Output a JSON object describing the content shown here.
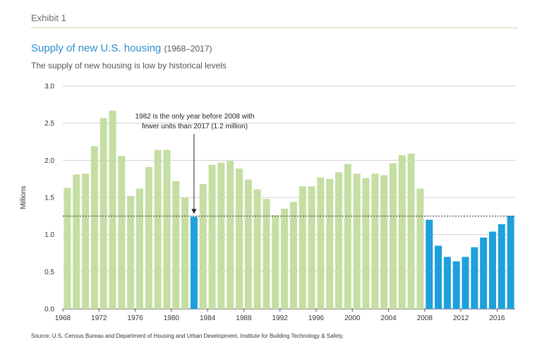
{
  "header": {
    "exhibit": "Exhibit 1",
    "title": "Supply of new U.S. housing",
    "title_years": "(1968–2017)",
    "subtitle": "The supply of new housing is low by historical levels"
  },
  "source": "Source: U.S. Census Bureau and Department of Housing and Urban Development, Institute for Building Technology & Safety.",
  "colors": {
    "accent": "#2a8fcf",
    "bar_default": "#c5dea3",
    "bar_highlight": "#1ea0dc"
  },
  "chart_data": {
    "type": "bar",
    "ylabel": "Millions",
    "ylim": [
      0,
      3.0
    ],
    "yticks": [
      0.0,
      0.5,
      1.0,
      1.5,
      2.0,
      2.5,
      3.0
    ],
    "ytick_labels": [
      "0.0",
      "0.5",
      "1.0",
      "1.5",
      "2.0",
      "2.5",
      "3.0"
    ],
    "xtick_labels": [
      "1968",
      "1972",
      "1976",
      "1980",
      "1984",
      "1988",
      "1992",
      "1996",
      "2000",
      "2004",
      "2008",
      "2012",
      "2016"
    ],
    "grid": true,
    "categories": [
      1968,
      1969,
      1970,
      1971,
      1972,
      1973,
      1974,
      1975,
      1976,
      1977,
      1978,
      1979,
      1980,
      1981,
      1982,
      1983,
      1984,
      1985,
      1986,
      1987,
      1988,
      1989,
      1990,
      1991,
      1992,
      1993,
      1994,
      1995,
      1996,
      1997,
      1998,
      1999,
      2000,
      2001,
      2002,
      2003,
      2004,
      2005,
      2006,
      2007,
      2008,
      2009,
      2010,
      2011,
      2012,
      2013,
      2014,
      2015,
      2016,
      2017
    ],
    "values": [
      1.63,
      1.81,
      1.82,
      2.19,
      2.57,
      2.67,
      2.06,
      1.52,
      1.62,
      1.91,
      2.14,
      2.14,
      1.72,
      1.5,
      1.24,
      1.68,
      1.94,
      1.97,
      1.99,
      1.89,
      1.74,
      1.61,
      1.48,
      1.26,
      1.35,
      1.44,
      1.65,
      1.65,
      1.77,
      1.75,
      1.84,
      1.95,
      1.82,
      1.76,
      1.82,
      1.8,
      1.96,
      2.07,
      2.09,
      1.62,
      1.2,
      0.85,
      0.7,
      0.64,
      0.7,
      0.83,
      0.96,
      1.04,
      1.14,
      1.25
    ],
    "highlight_years": [
      1982,
      2008,
      2009,
      2010,
      2011,
      2012,
      2013,
      2014,
      2015,
      2016,
      2017
    ],
    "reference_line": 1.25,
    "annotation": {
      "line1": "1982 is the only year before 2008 with",
      "line2": "fewer units than 2017 (1.2 million)",
      "target_year": 1982
    }
  }
}
